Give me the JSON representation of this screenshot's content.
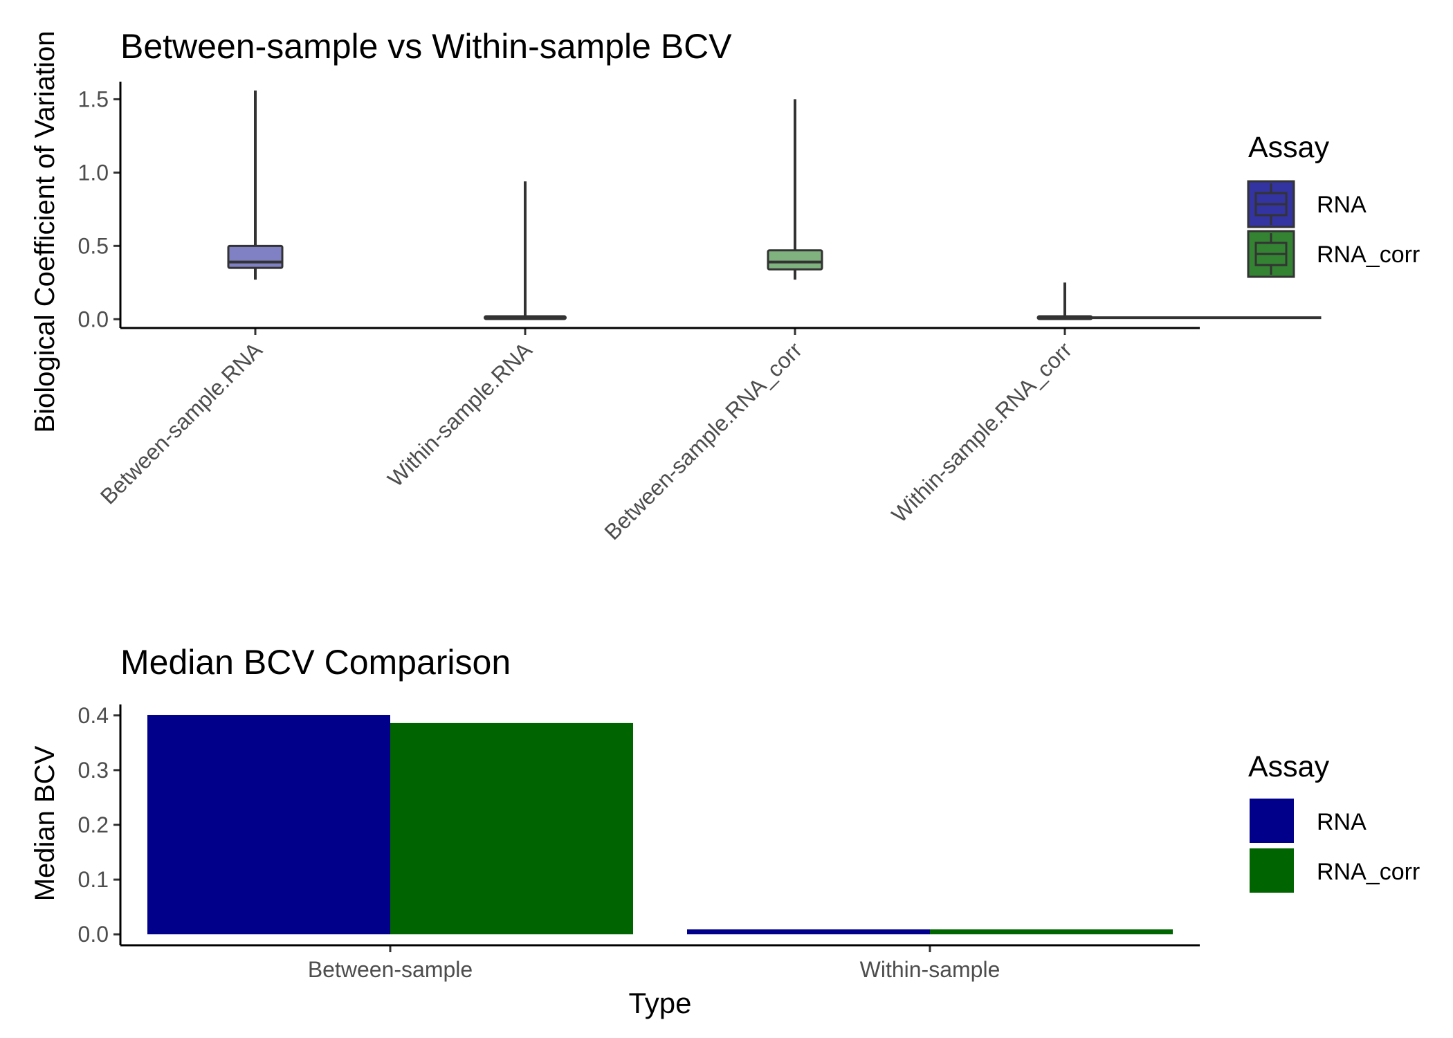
{
  "chart_data": [
    {
      "type": "box",
      "title": "Between-sample vs Within-sample BCV",
      "xlabel": "",
      "ylabel": "Biological Coefficient of Variation",
      "ylim": [
        -0.06,
        1.62
      ],
      "yticks": [
        0.0,
        0.5,
        1.0,
        1.5
      ],
      "ytick_labels": [
        "0.0",
        "0.5",
        "1.0",
        "1.5"
      ],
      "grid": false,
      "legend": {
        "title": "Assay",
        "position": "right",
        "items": [
          {
            "label": "RNA",
            "color": "#00008B"
          },
          {
            "label": "RNA_corr",
            "color": "#006400"
          }
        ]
      },
      "categories": [
        "Between-sample.RNA",
        "Within-sample.RNA",
        "Between-sample.RNA_corr",
        "Within-sample.RNA_corr"
      ],
      "boxes": [
        {
          "category": "Between-sample.RNA",
          "assay": "RNA",
          "color": "#00008B",
          "whisker_low": 0.27,
          "q1": 0.35,
          "median": 0.39,
          "q3": 0.5,
          "whisker_high": 1.56,
          "relative_width": 0.2
        },
        {
          "category": "Within-sample.RNA",
          "assay": "RNA",
          "color": "#00008B",
          "whisker_low": 0.0,
          "q1": 0.005,
          "median": 0.01,
          "q3": 0.02,
          "whisker_high": 0.94,
          "relative_width": 0.3
        },
        {
          "category": "Between-sample.RNA_corr",
          "assay": "RNA_corr",
          "color": "#006400",
          "whisker_low": 0.27,
          "q1": 0.34,
          "median": 0.39,
          "q3": 0.47,
          "whisker_high": 1.5,
          "relative_width": 0.2
        },
        {
          "category": "Within-sample.RNA_corr",
          "assay": "RNA_corr",
          "color": "#006400",
          "whisker_low": 0.0,
          "q1": 0.005,
          "median": 0.01,
          "q3": 0.02,
          "whisker_high": 0.25,
          "relative_width": 0.2,
          "whisker_x_range": [
            0.55,
            1.45
          ]
        }
      ]
    },
    {
      "type": "bar",
      "title": "Median BCV Comparison",
      "xlabel": "Type",
      "ylabel": "Median BCV",
      "ylim": [
        -0.02,
        0.42
      ],
      "yticks": [
        0.0,
        0.1,
        0.2,
        0.3,
        0.4
      ],
      "ytick_labels": [
        "0.0",
        "0.1",
        "0.2",
        "0.3",
        "0.4"
      ],
      "grid": false,
      "legend": {
        "title": "Assay",
        "position": "right",
        "items": [
          {
            "label": "RNA",
            "color": "#00008B"
          },
          {
            "label": "RNA_corr",
            "color": "#006400"
          }
        ]
      },
      "categories": [
        "Between-sample",
        "Within-sample"
      ],
      "series": [
        {
          "name": "RNA",
          "color": "#00008B",
          "values": [
            0.401,
            0.009
          ]
        },
        {
          "name": "RNA_corr",
          "color": "#006400",
          "values": [
            0.386,
            0.009
          ]
        }
      ]
    }
  ]
}
